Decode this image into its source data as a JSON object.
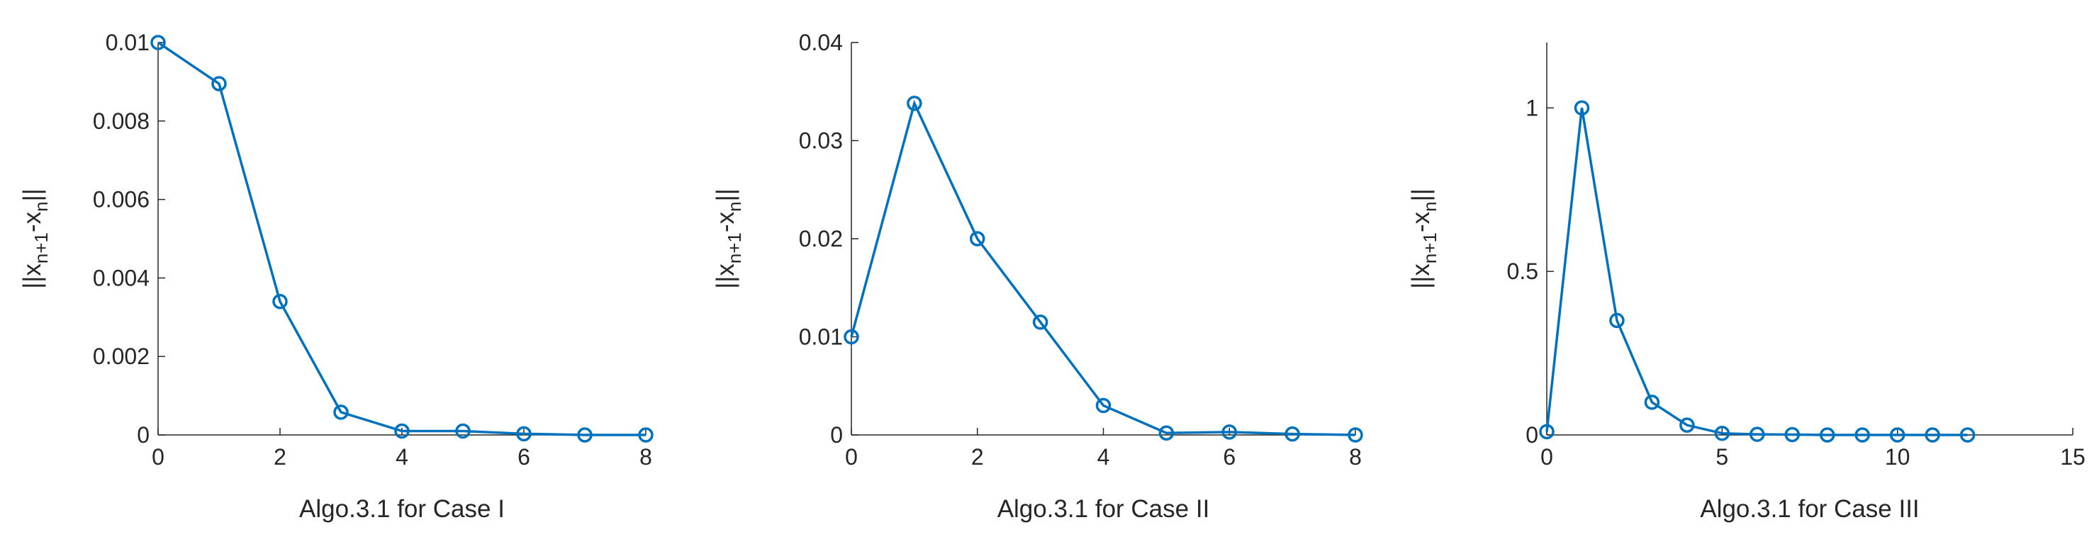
{
  "chart_data": [
    {
      "type": "line",
      "xlabel": "Algo.3.1 for Case I",
      "ylabel": [
        "||x",
        "n+1",
        "-x",
        "n",
        "||"
      ],
      "x": [
        0,
        1,
        2,
        3,
        4,
        5,
        6,
        7,
        8
      ],
      "series": [
        {
          "color": "#0072bd",
          "values": [
            0.01,
            0.00895,
            0.0034,
            0.00058,
            0.0001,
            0.0001,
            3e-05,
            0.0,
            0.0
          ]
        }
      ],
      "xlim": [
        0,
        8
      ],
      "xticks": [
        0,
        2,
        4,
        6,
        8
      ],
      "ylim": [
        0,
        0.01
      ],
      "yticks": [
        0,
        0.002,
        0.004,
        0.006,
        0.008,
        0.01
      ]
    },
    {
      "type": "line",
      "xlabel": "Algo.3.1 for Case II",
      "ylabel": [
        "||x",
        "n+1",
        "-x",
        "n",
        "||"
      ],
      "x": [
        0,
        1,
        2,
        3,
        4,
        5,
        6,
        7,
        8
      ],
      "series": [
        {
          "color": "#0072bd",
          "values": [
            0.01,
            0.0338,
            0.02,
            0.0115,
            0.003,
            0.0002,
            0.0003,
            0.0001,
            0.0
          ]
        }
      ],
      "xlim": [
        0,
        8
      ],
      "xticks": [
        0,
        2,
        4,
        6,
        8
      ],
      "ylim": [
        0,
        0.04
      ],
      "yticks": [
        0,
        0.01,
        0.02,
        0.03,
        0.04
      ]
    },
    {
      "type": "line",
      "xlabel": "Algo.3.1 for Case III",
      "ylabel": [
        "||x",
        "n+1",
        "-x",
        "n",
        "||"
      ],
      "x": [
        0,
        1,
        2,
        3,
        4,
        5,
        6,
        7,
        8,
        9,
        10,
        11,
        12
      ],
      "series": [
        {
          "color": "#0072bd",
          "values": [
            0.01,
            1.0,
            0.35,
            0.1,
            0.03,
            0.005,
            0.002,
            0.001,
            0.0,
            0.0,
            0.0,
            0.0,
            0.0
          ]
        }
      ],
      "xlim": [
        0,
        15
      ],
      "xticks": [
        0,
        5,
        10,
        15
      ],
      "ylim": [
        0,
        1.2
      ],
      "yticks": [
        0,
        0.5,
        1
      ]
    }
  ]
}
